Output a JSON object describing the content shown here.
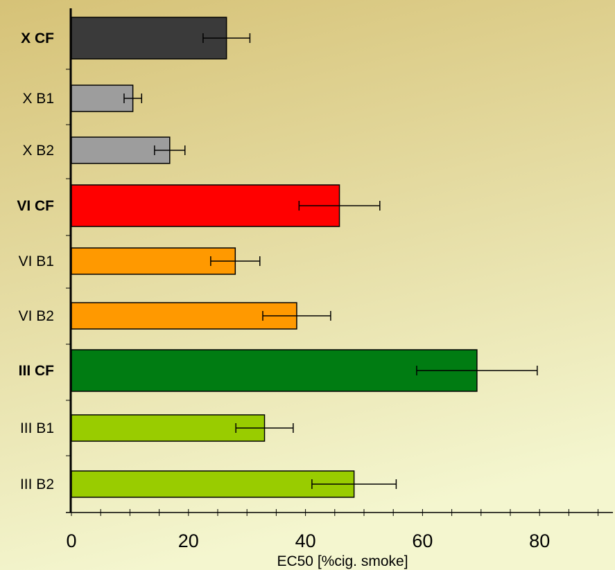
{
  "chart_data": {
    "type": "bar",
    "orientation": "horizontal",
    "xlabel": "EC50 [%cig. smoke]",
    "ylabel": "",
    "xlim": [
      0,
      92
    ],
    "xticks": [
      0,
      20,
      40,
      60,
      80
    ],
    "grid": false,
    "legend": "none",
    "background": {
      "top": "#d6c277",
      "bottom": "#f4f6cf"
    },
    "categories": [
      {
        "label": "X CF",
        "bold": true,
        "value": 26.5,
        "error": 4.0,
        "color": "#3a3a3a"
      },
      {
        "label": "X B1",
        "bold": false,
        "value": 10.5,
        "error": 1.5,
        "color": "#9d9d9d"
      },
      {
        "label": "X B2",
        "bold": false,
        "value": 16.8,
        "error": 2.6,
        "color": "#9d9d9d"
      },
      {
        "label": "VI CF",
        "bold": true,
        "value": 45.8,
        "error": 6.9,
        "color": "#ff0000"
      },
      {
        "label": "VI B1",
        "bold": false,
        "value": 28.0,
        "error": 4.2,
        "color": "#ff9900"
      },
      {
        "label": "VI B2",
        "bold": false,
        "value": 38.5,
        "error": 5.8,
        "color": "#ff9900"
      },
      {
        "label": "III CF",
        "bold": true,
        "value": 69.3,
        "error": 10.3,
        "color": "#007c12"
      },
      {
        "label": "III B1",
        "bold": false,
        "value": 33.0,
        "error": 4.9,
        "color": "#99cc00"
      },
      {
        "label": "III B2",
        "bold": false,
        "value": 48.3,
        "error": 7.2,
        "color": "#99cc00"
      }
    ]
  }
}
